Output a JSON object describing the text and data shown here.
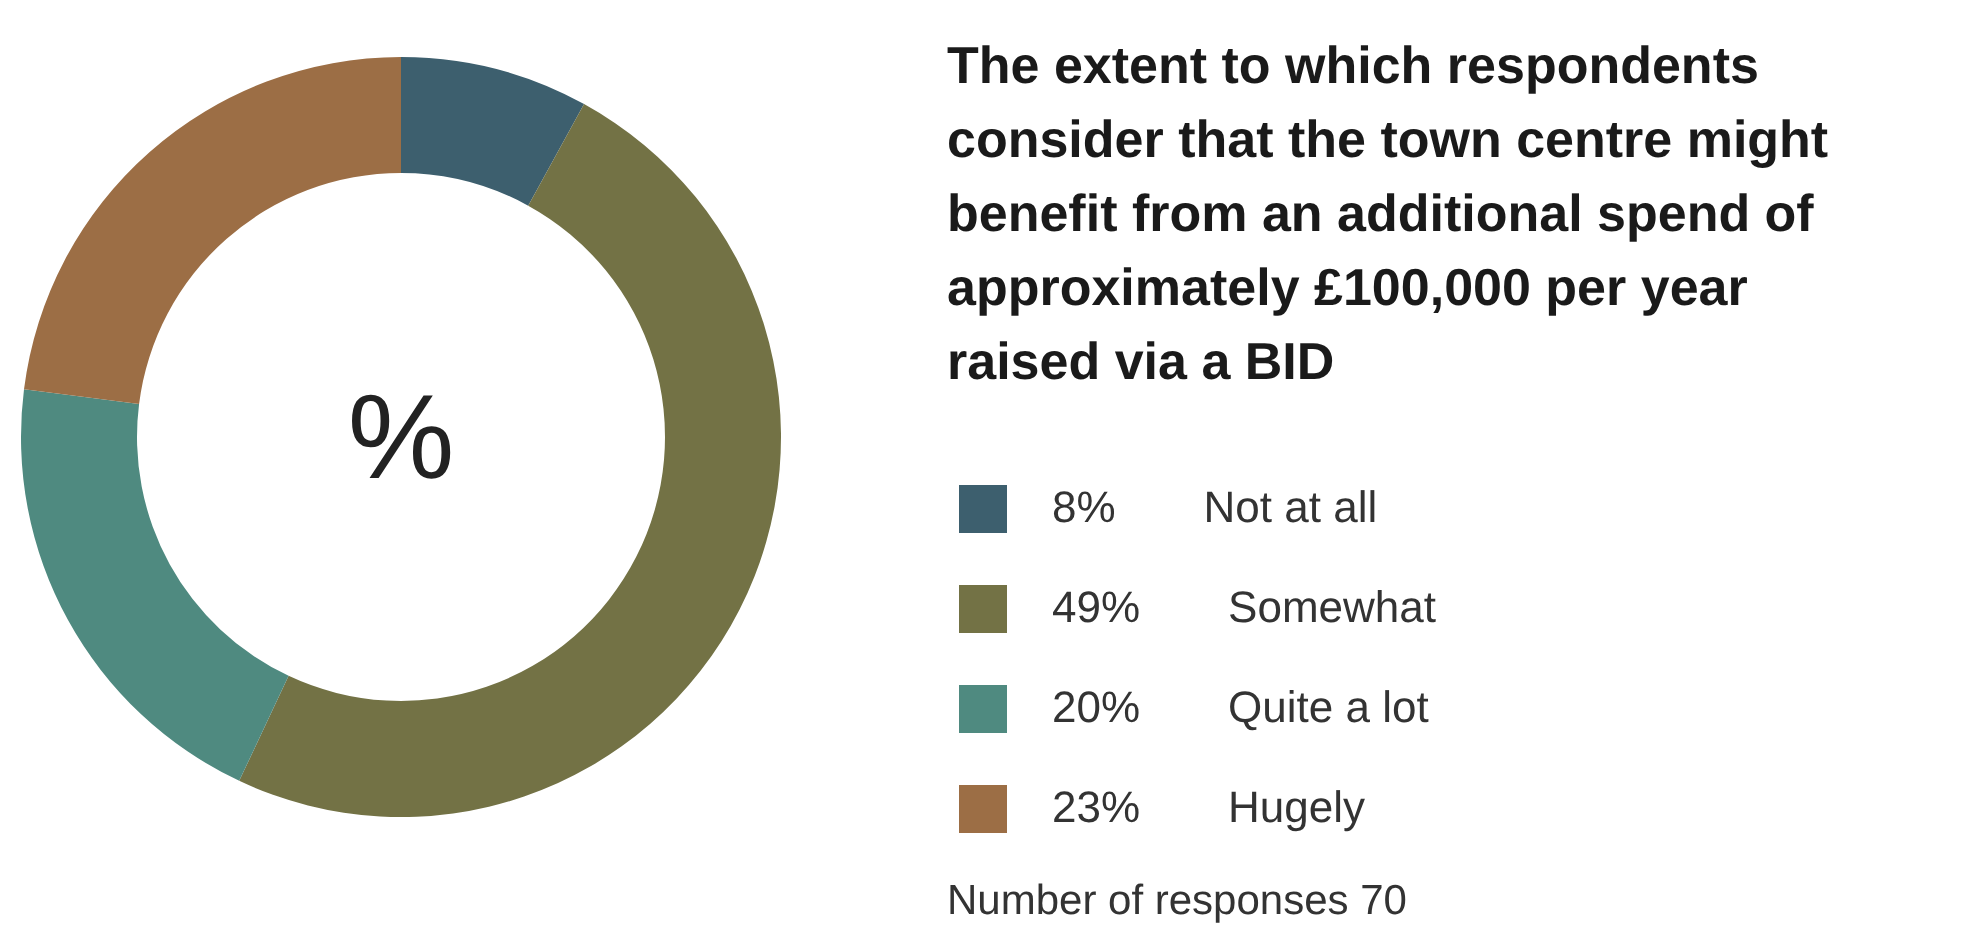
{
  "chart_data": {
    "type": "donut",
    "title": "The extent to which respondents consider that the town centre might benefit from an additional spend of approximately £100,000 per year raised via a BID",
    "categories": [
      "Not at all",
      "Somewhat",
      "Quite a lot",
      "Hugely"
    ],
    "values": [
      8,
      49,
      20,
      23
    ],
    "colors": [
      "#3d5f6e",
      "#737245",
      "#4f8a80",
      "#9c6e45"
    ],
    "value_labels": [
      "8%",
      "49%",
      "20%",
      "23%"
    ],
    "legend": "right",
    "annotations": [
      "%",
      "Number of responses 70"
    ]
  }
}
